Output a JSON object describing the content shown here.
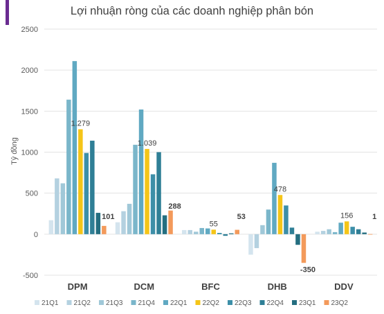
{
  "chart_data": {
    "type": "bar",
    "title": "Lợi nhuận ròng của các doanh nghiệp phân bón",
    "ylabel": "Tỷ đồng",
    "xlabel": "",
    "ylim": [
      -500,
      2500
    ],
    "yticks": [
      "-500",
      "0",
      "500",
      "1000",
      "1500",
      "2000",
      "2500"
    ],
    "ytick_values": [
      -500,
      0,
      500,
      1000,
      1500,
      2000,
      2500
    ],
    "grid": true,
    "legend_position": "bottom",
    "categories": [
      "DPM",
      "DCM",
      "BFC",
      "DHB",
      "DDV"
    ],
    "series": [
      {
        "name": "21Q1",
        "color": "#d4e4ee",
        "values": [
          170,
          145,
          50,
          -250,
          30
        ]
      },
      {
        "name": "21Q2",
        "color": "#b4d1e0",
        "values": [
          680,
          280,
          50,
          -170,
          40
        ]
      },
      {
        "name": "21Q3",
        "color": "#a0c8d8",
        "values": [
          620,
          370,
          30,
          110,
          60
        ]
      },
      {
        "name": "21Q4",
        "color": "#7ab6ca",
        "values": [
          1640,
          1090,
          75,
          300,
          25
        ]
      },
      {
        "name": "22Q1",
        "color": "#60a9c2",
        "values": [
          2110,
          1520,
          70,
          870,
          140
        ]
      },
      {
        "name": "22Q2",
        "color": "#f5c518",
        "values": [
          1279,
          1039,
          55,
          478,
          156
        ]
      },
      {
        "name": "22Q3",
        "color": "#3d8fa8",
        "values": [
          990,
          730,
          15,
          350,
          90
        ]
      },
      {
        "name": "22Q4",
        "color": "#2f7f96",
        "values": [
          1140,
          1000,
          -20,
          80,
          60
        ]
      },
      {
        "name": "23Q1",
        "color": "#246e80",
        "values": [
          260,
          230,
          10,
          -130,
          20
        ]
      },
      {
        "name": "23Q2",
        "color": "#f39a5b",
        "values": [
          101,
          288,
          53,
          -350,
          1
        ]
      }
    ],
    "data_labels": [
      {
        "category": "DPM",
        "series": "22Q2",
        "text": "1.279"
      },
      {
        "category": "DPM",
        "series": "23Q2",
        "text": "101"
      },
      {
        "category": "DCM",
        "series": "22Q2",
        "text": "1.039"
      },
      {
        "category": "DCM",
        "series": "23Q2",
        "text": "288"
      },
      {
        "category": "BFC",
        "series": "22Q2",
        "text": "55"
      },
      {
        "category": "BFC",
        "series": "23Q2",
        "text": "53"
      },
      {
        "category": "DHB",
        "series": "22Q2",
        "text": "478"
      },
      {
        "category": "DHB",
        "series": "23Q2",
        "text": "-350"
      },
      {
        "category": "DDV",
        "series": "22Q2",
        "text": "156"
      },
      {
        "category": "DDV",
        "series": "23Q2",
        "text": "1"
      }
    ]
  },
  "colors": {
    "accent": "#6a2c91",
    "grid": "#e3e3e3",
    "axis_text": "#595959",
    "category_text": "#404040",
    "label_text": "#404040"
  }
}
